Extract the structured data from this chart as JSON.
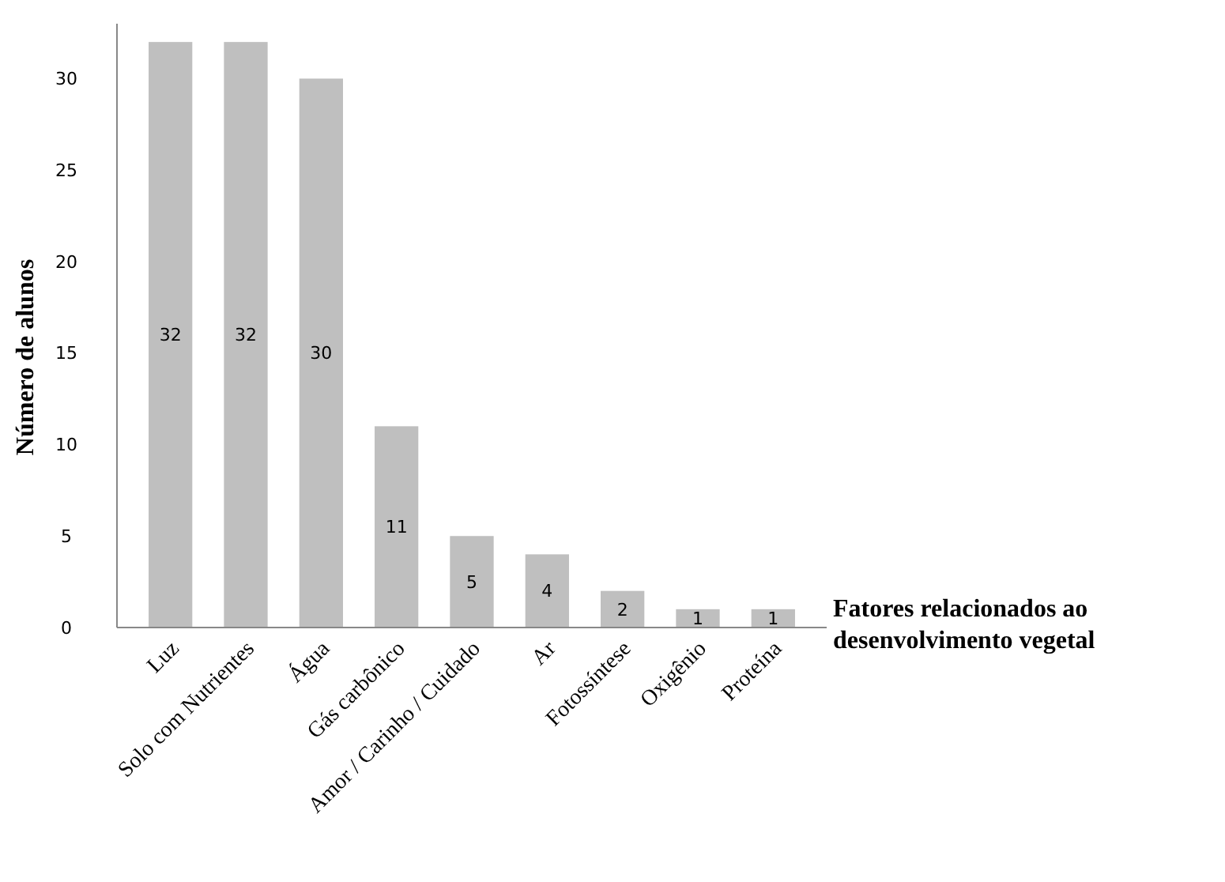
{
  "chart_data": {
    "type": "bar",
    "xlabel": "Fatores relacionados ao desenvolvimento vegetal",
    "ylabel": "Número de alunos",
    "categories": [
      "Luz",
      "Solo com Nutrientes",
      "Água",
      "Gás carbônico",
      "Amor / Carinho / Cuidado",
      "Ar",
      "Fotossíntese",
      "Oxigênio",
      "Proteína"
    ],
    "values": [
      32,
      32,
      30,
      11,
      5,
      4,
      2,
      1,
      1
    ],
    "color": "#bfbfbf",
    "ylim": [
      0,
      33
    ],
    "yticks": [
      0,
      5,
      10,
      15,
      20,
      25,
      30
    ],
    "grid": false,
    "data_labels": true
  }
}
